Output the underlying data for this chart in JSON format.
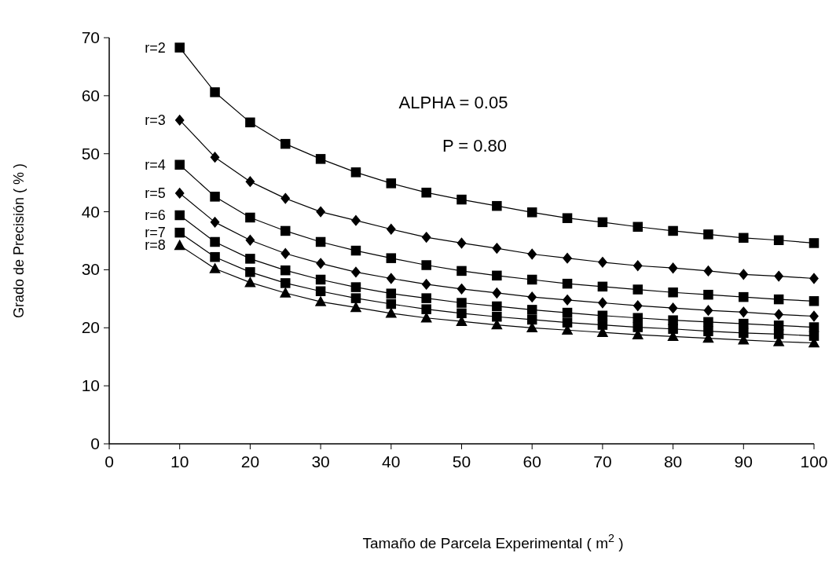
{
  "chart_data": {
    "type": "line",
    "xlabel": "Tamaño de Parcela Experimental ( m$^{2}$ )",
    "ylabel": "Grado de Precisión ( % )",
    "x": [
      10,
      15,
      20,
      25,
      30,
      35,
      40,
      45,
      50,
      55,
      60,
      65,
      70,
      75,
      80,
      85,
      90,
      95,
      100
    ],
    "xlim": [
      0,
      100
    ],
    "xticks": [
      0,
      10,
      20,
      30,
      40,
      50,
      60,
      70,
      80,
      90,
      100
    ],
    "ylim": [
      0,
      70
    ],
    "yticks": [
      0,
      10,
      20,
      30,
      40,
      50,
      60,
      70
    ],
    "grid": false,
    "legend": false,
    "line_style": "solid",
    "annotations": [
      "ALPHA = 0.05",
      "P = 0.80"
    ],
    "series": [
      {
        "name": "r=2",
        "color": "#000000",
        "marker": "square",
        "values": [
          68.3,
          60.6,
          55.4,
          51.7,
          49.1,
          46.8,
          44.9,
          43.3,
          42.1,
          41.0,
          39.9,
          38.9,
          38.2,
          37.4,
          36.7,
          36.1,
          35.5,
          35.1,
          34.6
        ]
      },
      {
        "name": "r=3",
        "color": "#000000",
        "marker": "diamond",
        "values": [
          55.8,
          49.4,
          45.2,
          42.3,
          40.0,
          38.5,
          37.0,
          35.6,
          34.6,
          33.7,
          32.7,
          32.0,
          31.3,
          30.7,
          30.3,
          29.8,
          29.2,
          28.9,
          28.5
        ]
      },
      {
        "name": "r=4",
        "color": "#000000",
        "marker": "square",
        "values": [
          48.1,
          42.6,
          39.0,
          36.7,
          34.8,
          33.3,
          32.0,
          30.8,
          29.8,
          29.0,
          28.3,
          27.6,
          27.1,
          26.6,
          26.1,
          25.7,
          25.3,
          24.9,
          24.6
        ]
      },
      {
        "name": "r=5",
        "color": "#000000",
        "marker": "diamond",
        "values": [
          43.2,
          38.2,
          35.1,
          32.8,
          31.1,
          29.6,
          28.5,
          27.5,
          26.7,
          26.0,
          25.3,
          24.8,
          24.3,
          23.8,
          23.4,
          23.0,
          22.7,
          22.3,
          22.0
        ]
      },
      {
        "name": "r=6",
        "color": "#000000",
        "marker": "square",
        "values": [
          39.4,
          34.8,
          31.9,
          29.9,
          28.3,
          27.0,
          25.9,
          25.1,
          24.3,
          23.7,
          23.1,
          22.6,
          22.1,
          21.7,
          21.3,
          21.0,
          20.7,
          20.4,
          20.1
        ]
      },
      {
        "name": "r=7",
        "color": "#000000",
        "marker": "square",
        "values": [
          36.4,
          32.2,
          29.6,
          27.7,
          26.3,
          25.1,
          24.1,
          23.2,
          22.5,
          21.9,
          21.4,
          20.9,
          20.5,
          20.1,
          19.8,
          19.4,
          19.1,
          18.9,
          18.6
        ]
      },
      {
        "name": "r=8",
        "color": "#000000",
        "marker": "triangle",
        "values": [
          34.2,
          30.2,
          27.8,
          26.0,
          24.5,
          23.5,
          22.5,
          21.7,
          21.1,
          20.5,
          20.0,
          19.6,
          19.2,
          18.8,
          18.5,
          18.2,
          17.9,
          17.6,
          17.4
        ]
      }
    ]
  }
}
